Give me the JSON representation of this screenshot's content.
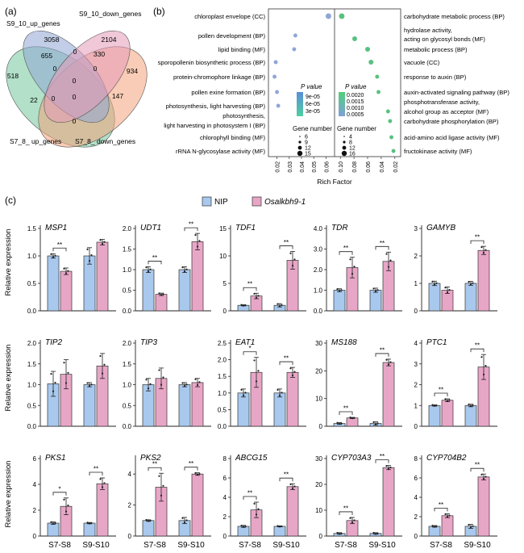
{
  "panels": {
    "a": "(a)",
    "b": "(b)",
    "c": "(c)"
  },
  "venn": {
    "sets": [
      {
        "label": "S9_10_up_genes",
        "color": "#8fa6d6"
      },
      {
        "label": "S9_10_down_genes",
        "color": "#e49bb8"
      },
      {
        "label": "S7_8_ up_genes",
        "color": "#73c79b"
      },
      {
        "label": "S7_8_ down_genes",
        "color": "#f3a27a"
      }
    ],
    "counts": [
      "3058",
      "2104",
      "655",
      "330",
      "0",
      "518",
      "934",
      "0",
      "0",
      "0",
      "0",
      "22",
      "0",
      "147",
      "0"
    ]
  },
  "bubble": {
    "xlabel": "Rich Factor",
    "left": {
      "color": "#8fa6d6",
      "xrange": [
        0.015,
        0.065
      ],
      "ticks": [
        "0.02",
        "0.03",
        "0.04",
        "0.05",
        "0.06"
      ],
      "terms": [
        {
          "label": "chloroplast envelope (CC)",
          "x": 0.062,
          "size": 12
        },
        {
          "label": "pollen development (BP)",
          "x": 0.035,
          "size": 6
        },
        {
          "label": "lipid binding (MF)",
          "x": 0.034,
          "size": 6
        },
        {
          "label": "sporopollenin biosynthetic process (BP)",
          "x": 0.019,
          "size": 6
        },
        {
          "label": "protein-chromophore linkage (BP)",
          "x": 0.018,
          "size": 6
        },
        {
          "label": "pollen exine formation (BP)",
          "x": 0.02,
          "size": 6
        },
        {
          "label": "photosynthesis, light harvesting (BP)",
          "x": 0.021,
          "size": 6
        },
        {
          "label": "photosynthesis,",
          "x": null,
          "size": 0
        },
        {
          "label": "light harvesting in photosystem I (BP)",
          "x": null,
          "size": 0
        },
        {
          "label": "chlorophyll binding (MF)",
          "x": null,
          "size": 0
        },
        {
          "label": "rRNA N-glycosylase activity (MF)",
          "x": null,
          "size": 0
        }
      ]
    },
    "right": {
      "color": "#59c17f",
      "xrange": [
        0.105,
        0.015
      ],
      "ticks": [
        "0.10",
        "0.08",
        "0.06",
        "0.04",
        "0.02"
      ],
      "terms": [
        {
          "label": "carbohydrate metabolic process (BP)",
          "x": 0.098,
          "size": 12
        },
        {
          "label": "hydrolase activity,",
          "x": null,
          "size": 0
        },
        {
          "label": "acting on glycosyl bonds (MF)",
          "x": 0.079,
          "size": 9
        },
        {
          "label": "metabolic process (BP)",
          "x": 0.06,
          "size": 9
        },
        {
          "label": "vacuole (CC)",
          "x": 0.055,
          "size": 9
        },
        {
          "label": "response to auxin (BP)",
          "x": 0.046,
          "size": 6
        },
        {
          "label": "auxin-activated signaling pathway (BP)",
          "x": 0.044,
          "size": 6
        },
        {
          "label": "phosphotransferase activity,",
          "x": null,
          "size": 0
        },
        {
          "label": "alcohol group as acceptor (MF)",
          "x": 0.03,
          "size": 6
        },
        {
          "label": "carbohydrate phosphorylation (BP)",
          "x": 0.027,
          "size": 6
        },
        {
          "label": "acid-amino acid ligase activity (MF)",
          "x": 0.025,
          "size": 6
        },
        {
          "label": "fructokinase activity (MF)",
          "x": 0.022,
          "size": 6
        }
      ]
    },
    "pvalue_title": "P value",
    "left_pvalues": [
      "9e-05",
      "6e-05",
      "3e-05"
    ],
    "right_pvalues": [
      "0.0020",
      "0.0015",
      "0.0010",
      "0.0005"
    ],
    "gene_title": "Gene number",
    "left_gene_numbers": [
      "6",
      "9",
      "12",
      "15"
    ],
    "right_gene_numbers": [
      "4",
      "8",
      "12",
      "16"
    ]
  },
  "expression": {
    "legend": [
      {
        "label": "NIP",
        "color": "#a9c8ee"
      },
      {
        "label": "Osalkbh9-1",
        "color": "#e8a6c7"
      }
    ],
    "ylabel": "Relative expression",
    "groups": [
      "S7-S8",
      "S9-S10"
    ],
    "genes": [
      {
        "name": "MSP1",
        "ymax": 1.5,
        "ticks": [
          "0.0",
          "0.5",
          "1.0",
          "1.5"
        ],
        "values": [
          1.0,
          0.72,
          1.0,
          1.25
        ],
        "errors": [
          0.04,
          0.06,
          0.15,
          0.05
        ],
        "sig": [
          "**",
          ""
        ]
      },
      {
        "name": "UDT1",
        "ymax": 2.0,
        "ticks": [
          "0.0",
          "0.5",
          "1.0",
          "1.5",
          "2.0"
        ],
        "values": [
          1.0,
          0.4,
          1.0,
          1.68
        ],
        "errors": [
          0.07,
          0.03,
          0.07,
          0.2
        ],
        "sig": [
          "**",
          "**"
        ]
      },
      {
        "name": "TDF1",
        "ymax": 15,
        "ticks": [
          "0",
          "5",
          "10",
          "15"
        ],
        "values": [
          1.0,
          2.7,
          1.0,
          9.2
        ],
        "errors": [
          0.1,
          0.5,
          0.3,
          1.6
        ],
        "sig": [
          "**",
          "**"
        ]
      },
      {
        "name": "TDR",
        "ymax": 4.0,
        "ticks": [
          "0.0",
          "1.0",
          "2.0",
          "3.0",
          "4.0"
        ],
        "values": [
          1.0,
          2.1,
          1.0,
          2.4
        ],
        "errors": [
          0.07,
          0.5,
          0.1,
          0.45
        ],
        "sig": [
          "**",
          "**"
        ]
      },
      {
        "name": "GAMYB",
        "ymax": 3,
        "ticks": [
          "0",
          "1",
          "2",
          "3"
        ],
        "values": [
          1.0,
          0.75,
          1.0,
          2.2
        ],
        "errors": [
          0.08,
          0.12,
          0.07,
          0.15
        ],
        "sig": [
          "",
          "**"
        ]
      },
      {
        "name": "TIP2",
        "ymax": 2.0,
        "ticks": [
          "0.0",
          "0.5",
          "1.0",
          "1.5",
          "2.0"
        ],
        "values": [
          1.02,
          1.25,
          1.0,
          1.45
        ],
        "errors": [
          0.3,
          0.35,
          0.05,
          0.3
        ],
        "sig": [
          "",
          ""
        ]
      },
      {
        "name": "TIP3",
        "ymax": 2.0,
        "ticks": [
          "0.0",
          "0.5",
          "1.0",
          "1.5",
          "2.0"
        ],
        "values": [
          1.0,
          1.15,
          1.0,
          1.05
        ],
        "errors": [
          0.15,
          0.25,
          0.05,
          0.1
        ],
        "sig": [
          "",
          ""
        ]
      },
      {
        "name": "EAT1",
        "ymax": 2.5,
        "ticks": [
          "0.0",
          "0.5",
          "1.0",
          "1.5",
          "2.0",
          "2.5"
        ],
        "values": [
          1.0,
          1.62,
          1.0,
          1.62
        ],
        "errors": [
          0.12,
          0.45,
          0.12,
          0.15
        ],
        "sig": [
          "*",
          "**"
        ]
      },
      {
        "name": "MS188",
        "ymax": 30,
        "ticks": [
          "0",
          "10",
          "20",
          "30"
        ],
        "values": [
          1.0,
          3.0,
          1.0,
          23.0
        ],
        "errors": [
          0.3,
          0.2,
          0.6,
          1.2
        ],
        "sig": [
          "**",
          "**"
        ]
      },
      {
        "name": "PTC1",
        "ymax": 4,
        "ticks": [
          "0",
          "1",
          "2",
          "3",
          "4"
        ],
        "values": [
          1.0,
          1.25,
          1.0,
          2.85
        ],
        "errors": [
          0.03,
          0.07,
          0.06,
          0.6
        ],
        "sig": [
          "**",
          "**"
        ]
      },
      {
        "name": "PKS1",
        "ymax": 6,
        "ticks": [
          "0",
          "2",
          "4",
          "6"
        ],
        "values": [
          1.0,
          2.3,
          1.0,
          4.05
        ],
        "errors": [
          0.1,
          0.65,
          0.05,
          0.45
        ],
        "sig": [
          "*",
          "**"
        ]
      },
      {
        "name": "PKS2",
        "ymax": 5,
        "ticks": [
          "0",
          "2",
          "4"
        ],
        "values": [
          1.0,
          3.15,
          1.0,
          4.0
        ],
        "errors": [
          0.05,
          0.9,
          0.2,
          0.08
        ],
        "sig": [
          "**",
          "**"
        ]
      },
      {
        "name": "ABCG15",
        "ymax": 8,
        "ticks": [
          "0",
          "2",
          "4",
          "6",
          "8"
        ],
        "values": [
          1.0,
          2.7,
          1.0,
          5.1
        ],
        "errors": [
          0.1,
          0.8,
          0.05,
          0.3
        ],
        "sig": [
          "**",
          "**"
        ]
      },
      {
        "name": "CYP703A3",
        "ymax": 30,
        "ticks": [
          "0",
          "10",
          "20",
          "30"
        ],
        "values": [
          1.0,
          6.0,
          1.0,
          26.5
        ],
        "errors": [
          0.3,
          1.2,
          0.3,
          0.8
        ],
        "sig": [
          "**",
          "**"
        ]
      },
      {
        "name": "CYP704B2",
        "ymax": 8,
        "ticks": [
          "0",
          "2",
          "4",
          "6",
          "8"
        ],
        "values": [
          1.0,
          2.1,
          1.0,
          6.1
        ],
        "errors": [
          0.08,
          0.2,
          0.2,
          0.3
        ],
        "sig": [
          "**",
          "**"
        ]
      }
    ]
  }
}
